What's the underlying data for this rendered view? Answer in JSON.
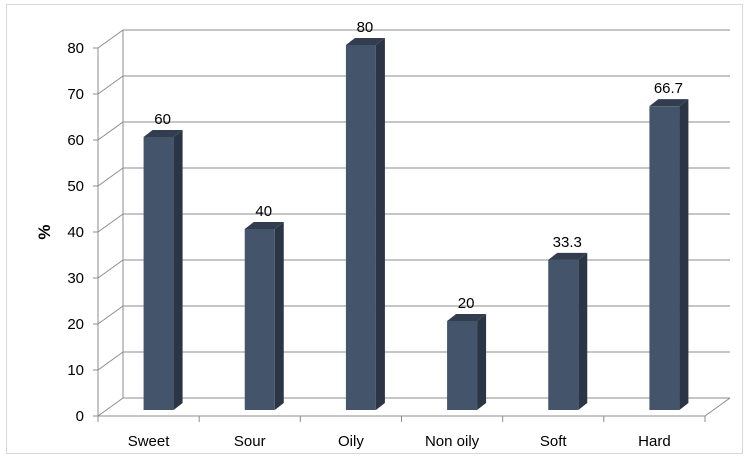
{
  "chart_data": {
    "type": "bar",
    "title": "",
    "xlabel": "",
    "ylabel": "%",
    "categories": [
      "Sweet",
      "Sour",
      "Oily",
      "Non oily",
      "Soft",
      "Hard"
    ],
    "values": [
      60,
      40,
      80,
      20,
      33.3,
      66.7
    ],
    "data_labels": [
      "60",
      "40",
      "80",
      "20",
      "33.3",
      "66.7"
    ],
    "yticks": [
      "0",
      "10",
      "20",
      "30",
      "40",
      "50",
      "60",
      "70",
      "80"
    ],
    "ylim": [
      0,
      80
    ],
    "grid": true,
    "legend": "none",
    "style": "3d-column",
    "colors": {
      "bar_front": "#44546A",
      "bar_side": "#2A3546",
      "bar_top": "#323E50",
      "grid": "#8c8c8c"
    }
  }
}
